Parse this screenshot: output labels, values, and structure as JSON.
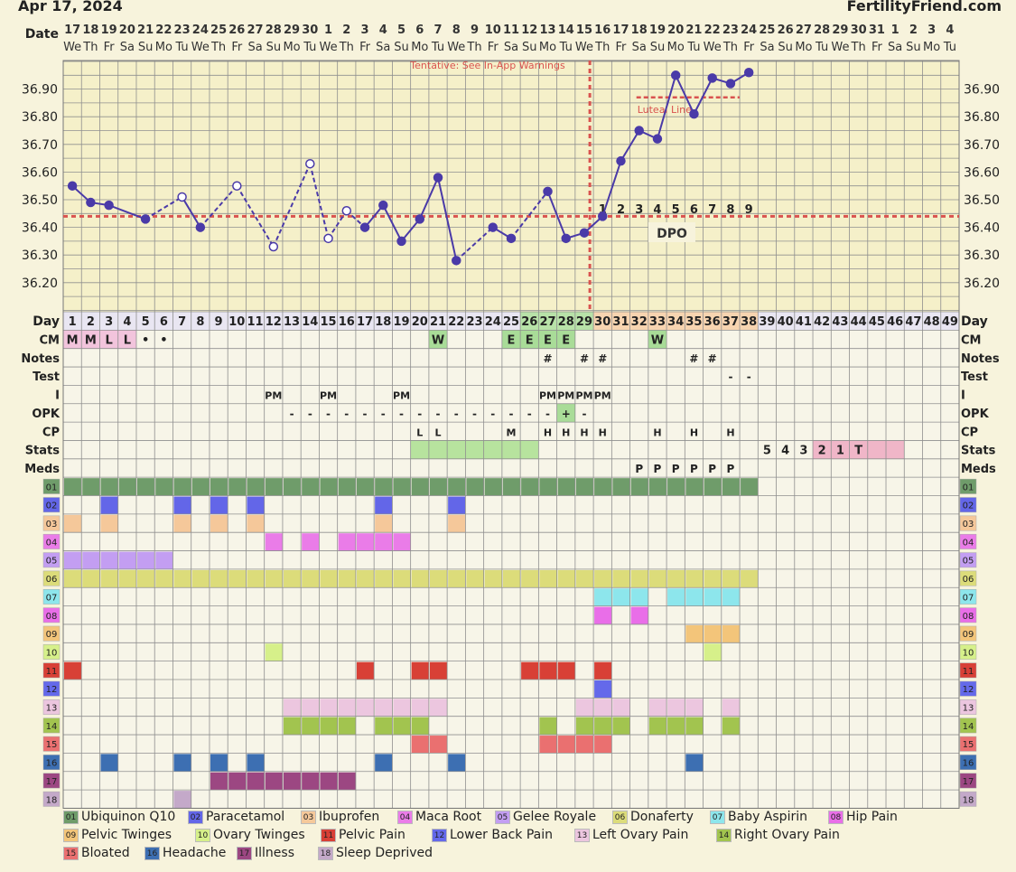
{
  "header": {
    "date": "Apr 17, 2024",
    "brand": "FertilityFriend.com"
  },
  "warning": "Tentative: See In-App Warnings",
  "coverline_label": "Luteal Line",
  "dpo_label": "DPO",
  "colors": {
    "bg": "#f7f3dc",
    "grid": "#8a8a8a",
    "line": "#4a3aa8",
    "coverline": "#d9534f"
  },
  "chart_data": {
    "type": "line",
    "title": "",
    "ylabel": "",
    "ylim": [
      36.1,
      37.0
    ],
    "yticks": [
      "36.90",
      "36.80",
      "36.70",
      "36.60",
      "36.50",
      "36.40",
      "36.30",
      "36.20"
    ],
    "yvalues": [
      36.9,
      36.8,
      36.7,
      36.6,
      36.5,
      36.4,
      36.3,
      36.2
    ],
    "date_numbers": [
      "17",
      "18",
      "19",
      "20",
      "21",
      "22",
      "23",
      "24",
      "25",
      "26",
      "27",
      "28",
      "29",
      "30",
      "1",
      "2",
      "3",
      "4",
      "5",
      "6",
      "7",
      "8",
      "9",
      "10",
      "11",
      "12",
      "13",
      "14",
      "15",
      "16",
      "17",
      "18",
      "19",
      "20",
      "21",
      "22",
      "23",
      "24",
      "25",
      "26",
      "27",
      "28",
      "29",
      "30",
      "31",
      "1",
      "2",
      "3",
      "4"
    ],
    "weekdays": [
      "We",
      "Th",
      "Fr",
      "Sa",
      "Su",
      "Mo",
      "Tu",
      "We",
      "Th",
      "Fr",
      "Sa",
      "Su",
      "Mo",
      "Tu",
      "We",
      "Th",
      "Fr",
      "Sa",
      "Su",
      "Mo",
      "Tu",
      "We",
      "Th",
      "Fr",
      "Sa",
      "Su",
      "Mo",
      "Tu",
      "We",
      "Th",
      "Fr",
      "Sa",
      "Su",
      "Mo",
      "Tu",
      "We",
      "Th",
      "Fr",
      "Sa",
      "Su",
      "Mo",
      "Tu",
      "We",
      "Th",
      "Fr",
      "Sa",
      "Su",
      "Mo",
      "Tu"
    ],
    "temps": [
      {
        "day": 1,
        "t": 36.55,
        "disc": false
      },
      {
        "day": 2,
        "t": 36.49,
        "disc": false
      },
      {
        "day": 3,
        "t": 36.48,
        "disc": false
      },
      {
        "day": 5,
        "t": 36.43,
        "disc": false
      },
      {
        "day": 7,
        "t": 36.51,
        "disc": true
      },
      {
        "day": 8,
        "t": 36.4,
        "disc": false
      },
      {
        "day": 10,
        "t": 36.55,
        "disc": true
      },
      {
        "day": 12,
        "t": 36.33,
        "disc": true
      },
      {
        "day": 14,
        "t": 36.63,
        "disc": true
      },
      {
        "day": 15,
        "t": 36.36,
        "disc": true
      },
      {
        "day": 16,
        "t": 36.46,
        "disc": true
      },
      {
        "day": 17,
        "t": 36.4,
        "disc": false
      },
      {
        "day": 18,
        "t": 36.48,
        "disc": false
      },
      {
        "day": 19,
        "t": 36.35,
        "disc": false
      },
      {
        "day": 20,
        "t": 36.43,
        "disc": false
      },
      {
        "day": 21,
        "t": 36.58,
        "disc": false
      },
      {
        "day": 22,
        "t": 36.28,
        "disc": false
      },
      {
        "day": 24,
        "t": 36.4,
        "disc": false
      },
      {
        "day": 25,
        "t": 36.36,
        "disc": false
      },
      {
        "day": 27,
        "t": 36.53,
        "disc": false
      },
      {
        "day": 28,
        "t": 36.36,
        "disc": false
      },
      {
        "day": 29,
        "t": 36.38,
        "disc": false
      },
      {
        "day": 30,
        "t": 36.44,
        "disc": false
      },
      {
        "day": 31,
        "t": 36.64,
        "disc": false
      },
      {
        "day": 32,
        "t": 36.75,
        "disc": false
      },
      {
        "day": 33,
        "t": 36.72,
        "disc": false
      },
      {
        "day": 34,
        "t": 36.95,
        "disc": false
      },
      {
        "day": 35,
        "t": 36.81,
        "disc": false
      },
      {
        "day": 36,
        "t": 36.94,
        "disc": false
      },
      {
        "day": 37,
        "t": 36.92,
        "disc": false
      },
      {
        "day": 38,
        "t": 36.96,
        "disc": false
      }
    ],
    "dashed_after_day": [
      5,
      8,
      10,
      12,
      14,
      15,
      16,
      22,
      25
    ],
    "coverline": 36.44,
    "luteal_line": {
      "t": 36.87,
      "from_day": 32,
      "to_day": 37
    },
    "ovulation_day": 29,
    "dpo": [
      {
        "day": 30,
        "n": "1"
      },
      {
        "day": 31,
        "n": "2"
      },
      {
        "day": 32,
        "n": "3"
      },
      {
        "day": 33,
        "n": "4"
      },
      {
        "day": 34,
        "n": "5"
      },
      {
        "day": 35,
        "n": "6"
      },
      {
        "day": 36,
        "n": "7"
      },
      {
        "day": 37,
        "n": "8"
      },
      {
        "day": 38,
        "n": "9"
      }
    ],
    "row_labels": {
      "date": "Date",
      "day": "Day",
      "cm": "CM",
      "notes": "Notes",
      "test": "Test",
      "intercourse": "I",
      "opk": "OPK",
      "cp": "CP",
      "stats": "Stats",
      "meds": "Meds"
    },
    "cm": [
      {
        "day": 1,
        "v": "M"
      },
      {
        "day": 2,
        "v": "M"
      },
      {
        "day": 3,
        "v": "L"
      },
      {
        "day": 4,
        "v": "L"
      },
      {
        "day": 5,
        "v": "•"
      },
      {
        "day": 6,
        "v": "•"
      },
      {
        "day": 21,
        "v": "W"
      },
      {
        "day": 25,
        "v": "E"
      },
      {
        "day": 26,
        "v": "E"
      },
      {
        "day": 27,
        "v": "E"
      },
      {
        "day": 28,
        "v": "E"
      },
      {
        "day": 33,
        "v": "W"
      }
    ],
    "notes": [
      {
        "day": 27,
        "v": "#"
      },
      {
        "day": 29,
        "v": "#"
      },
      {
        "day": 30,
        "v": "#"
      },
      {
        "day": 35,
        "v": "#"
      },
      {
        "day": 36,
        "v": "#"
      }
    ],
    "test": [
      {
        "day": 37,
        "v": "-"
      },
      {
        "day": 38,
        "v": "-"
      }
    ],
    "intercourse": [
      {
        "day": 12,
        "v": "PM"
      },
      {
        "day": 15,
        "v": "PM"
      },
      {
        "day": 19,
        "v": "PM"
      },
      {
        "day": 27,
        "v": "PM"
      },
      {
        "day": 28,
        "v": "PM"
      },
      {
        "day": 29,
        "v": "PM"
      },
      {
        "day": 30,
        "v": "PM"
      }
    ],
    "opk": [
      {
        "day": 13,
        "v": "-"
      },
      {
        "day": 14,
        "v": "-"
      },
      {
        "day": 15,
        "v": "-"
      },
      {
        "day": 16,
        "v": "-"
      },
      {
        "day": 17,
        "v": "-"
      },
      {
        "day": 18,
        "v": "-"
      },
      {
        "day": 19,
        "v": "-"
      },
      {
        "day": 20,
        "v": "-"
      },
      {
        "day": 21,
        "v": "-"
      },
      {
        "day": 22,
        "v": "-"
      },
      {
        "day": 23,
        "v": "-"
      },
      {
        "day": 24,
        "v": "-"
      },
      {
        "day": 25,
        "v": "-"
      },
      {
        "day": 26,
        "v": "-"
      },
      {
        "day": 27,
        "v": "-"
      },
      {
        "day": 28,
        "v": "+"
      },
      {
        "day": 29,
        "v": "-"
      }
    ],
    "cp": [
      {
        "day": 20,
        "v": "L"
      },
      {
        "day": 21,
        "v": "L"
      },
      {
        "day": 25,
        "v": "M"
      },
      {
        "day": 27,
        "v": "H"
      },
      {
        "day": 28,
        "v": "H"
      },
      {
        "day": 29,
        "v": "H"
      },
      {
        "day": 30,
        "v": "H"
      },
      {
        "day": 33,
        "v": "H"
      },
      {
        "day": 35,
        "v": "H"
      },
      {
        "day": 37,
        "v": "H"
      }
    ],
    "stats": [
      {
        "day": 39,
        "v": "5"
      },
      {
        "day": 40,
        "v": "4"
      },
      {
        "day": 41,
        "v": "3"
      },
      {
        "day": 42,
        "v": "2"
      },
      {
        "day": 43,
        "v": "1"
      },
      {
        "day": 44,
        "v": "T"
      }
    ],
    "stats_green_days": [
      20,
      21,
      22,
      23,
      24,
      25,
      26
    ],
    "stats_pink_days": [
      42,
      43,
      44,
      45,
      46
    ],
    "meds": [
      {
        "day": 32,
        "v": "P"
      },
      {
        "day": 33,
        "v": "P"
      },
      {
        "day": 34,
        "v": "P"
      },
      {
        "day": 35,
        "v": "P"
      },
      {
        "day": 36,
        "v": "P"
      },
      {
        "day": 37,
        "v": "P"
      }
    ],
    "cm_pink_days": [
      1,
      2,
      3,
      4
    ],
    "cm_green_days": [
      21,
      25,
      26,
      27,
      28,
      33
    ],
    "highlight_days_green": [
      26,
      27,
      28,
      29
    ],
    "highlight_days_orange": [
      30,
      31,
      32,
      33,
      34,
      35,
      36,
      37,
      38
    ],
    "symptoms": [
      {
        "code": "01",
        "name": "Ubiquinon Q10",
        "color": "#6f9c6a",
        "days": [
          1,
          2,
          3,
          4,
          5,
          6,
          7,
          8,
          9,
          10,
          11,
          12,
          13,
          14,
          15,
          16,
          17,
          18,
          19,
          20,
          21,
          22,
          23,
          24,
          25,
          26,
          27,
          28,
          29,
          30,
          31,
          32,
          33,
          34,
          35,
          36,
          37,
          38
        ]
      },
      {
        "code": "02",
        "name": "Paracetamol",
        "color": "#6366e8",
        "days": [
          3,
          7,
          9,
          11,
          18,
          22
        ]
      },
      {
        "code": "03",
        "name": "Ibuprofen",
        "color": "#f5c89a",
        "days": [
          1,
          3,
          7,
          9,
          11,
          18,
          22
        ]
      },
      {
        "code": "04",
        "name": "Maca Root",
        "color": "#ea7ce8",
        "days": [
          12,
          14,
          16,
          17,
          18,
          19
        ]
      },
      {
        "code": "05",
        "name": "Gelee Royale",
        "color": "#c39ef2",
        "days": [
          1,
          2,
          3,
          4,
          5,
          6
        ]
      },
      {
        "code": "06",
        "name": "Donaferty",
        "color": "#dcdc7a",
        "days": [
          1,
          2,
          3,
          4,
          5,
          6,
          7,
          8,
          9,
          10,
          11,
          12,
          13,
          14,
          15,
          16,
          17,
          18,
          19,
          20,
          21,
          22,
          23,
          24,
          25,
          26,
          27,
          28,
          29,
          30,
          31,
          32,
          33,
          34,
          35,
          36,
          37,
          38
        ]
      },
      {
        "code": "07",
        "name": "Baby Aspirin",
        "color": "#8de6ec",
        "days": [
          30,
          31,
          32,
          34,
          35,
          36,
          37
        ]
      },
      {
        "code": "08",
        "name": "Hip Pain",
        "color": "#e96ee8",
        "days": [
          30,
          32
        ]
      },
      {
        "code": "09",
        "name": "Pelvic Twinges",
        "color": "#f3c57a",
        "days": [
          35,
          36,
          37
        ]
      },
      {
        "code": "10",
        "name": "Ovary Twinges",
        "color": "#d6f08a",
        "days": [
          12,
          36
        ]
      },
      {
        "code": "11",
        "name": "Pelvic Pain",
        "color": "#d84036",
        "days": [
          1,
          17,
          20,
          21,
          26,
          27,
          28,
          30
        ]
      },
      {
        "code": "12",
        "name": "Lower Back Pain",
        "color": "#6469ea",
        "days": [
          30
        ]
      },
      {
        "code": "13",
        "name": "Left Ovary Pain",
        "color": "#ecc6df",
        "days": [
          13,
          14,
          15,
          16,
          17,
          18,
          19,
          20,
          21,
          29,
          30,
          31,
          33,
          34,
          35,
          37
        ]
      },
      {
        "code": "14",
        "name": "Right Ovary Pain",
        "color": "#a2c44f",
        "days": [
          13,
          14,
          15,
          16,
          18,
          19,
          20,
          27,
          29,
          30,
          31,
          33,
          34,
          35,
          37
        ]
      },
      {
        "code": "15",
        "name": "Bloated",
        "color": "#ea7070",
        "days": [
          20,
          21,
          27,
          28,
          29,
          30
        ]
      },
      {
        "code": "16",
        "name": "Headache",
        "color": "#3d6fb2",
        "days": [
          3,
          7,
          9,
          11,
          18,
          22,
          35
        ]
      },
      {
        "code": "17",
        "name": "Illness",
        "color": "#9c4782",
        "days": [
          9,
          10,
          11,
          12,
          13,
          14,
          15,
          16
        ]
      },
      {
        "code": "18",
        "name": "Sleep Deprived",
        "color": "#c4a9c9",
        "days": [
          7
        ]
      }
    ]
  }
}
